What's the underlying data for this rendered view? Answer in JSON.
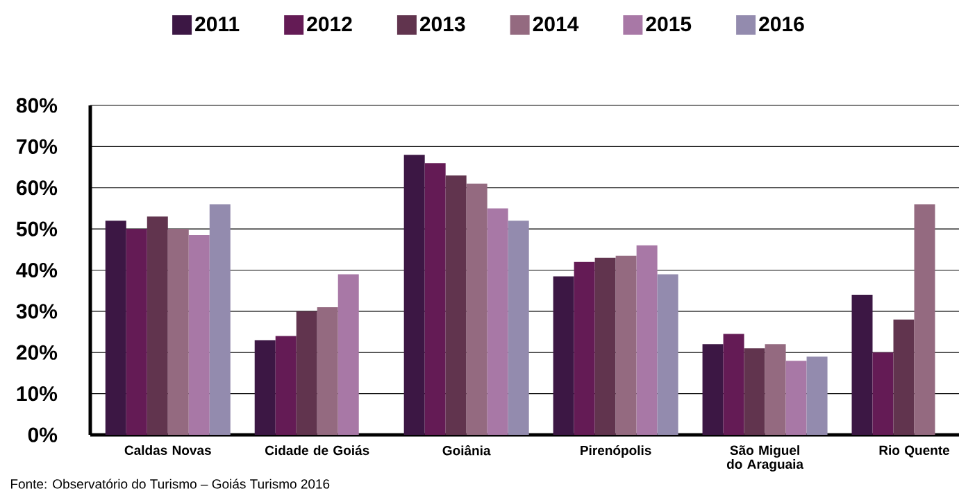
{
  "chart_data": {
    "type": "bar",
    "categories": [
      "Caldas Novas",
      "Cidade de Goiás",
      "Goiânia",
      "Pirenópolis",
      "São Miguel do Araguaia",
      "Rio Quente"
    ],
    "series": [
      {
        "name": "2011",
        "color": "#3c1744",
        "values": [
          52,
          23,
          68,
          38.5,
          22,
          34
        ]
      },
      {
        "name": "2012",
        "color": "#641b55",
        "values": [
          50,
          24,
          66,
          42,
          24.5,
          20
        ]
      },
      {
        "name": "2013",
        "color": "#61344e",
        "values": [
          53,
          30,
          63,
          43,
          21,
          28
        ]
      },
      {
        "name": "2014",
        "color": "#946a80",
        "values": [
          50,
          31,
          61,
          43.5,
          22,
          56
        ]
      },
      {
        "name": "2015",
        "color": "#a878a6",
        "values": [
          48.5,
          39,
          55,
          46,
          18,
          null
        ]
      },
      {
        "name": "2016",
        "color": "#938bae",
        "values": [
          56,
          null,
          52,
          39,
          19,
          null
        ]
      }
    ],
    "ylim": [
      0,
      80
    ],
    "yticks": [
      {
        "value": 0,
        "label": "0%"
      },
      {
        "value": 10,
        "label": "10%"
      },
      {
        "value": 20,
        "label": "20%"
      },
      {
        "value": 30,
        "label": "30%"
      },
      {
        "value": 40,
        "label": "40%"
      },
      {
        "value": 50,
        "label": "50%"
      },
      {
        "value": 60,
        "label": "60%"
      },
      {
        "value": 70,
        "label": "70%"
      },
      {
        "value": 80,
        "label": "80%"
      }
    ],
    "grid": "y",
    "legend": "top",
    "annotations": [
      "Fonte: Observatório do Turismo – Goiás Turismo 2016"
    ]
  }
}
